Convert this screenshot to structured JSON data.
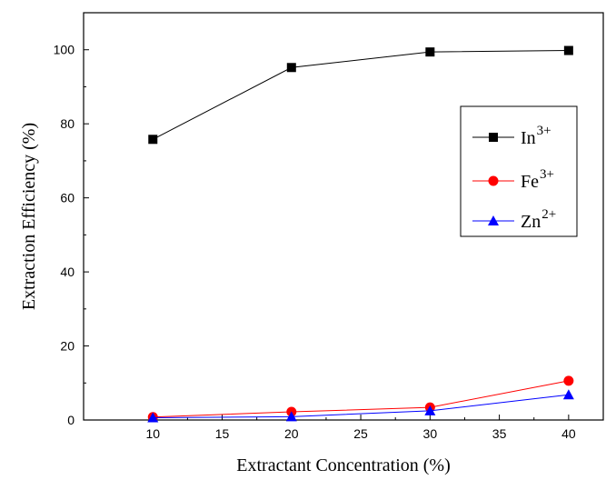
{
  "chart_data": {
    "type": "line",
    "xlabel": "Extractant Concentration  (%)",
    "ylabel": "Extraction Efficiency (%)",
    "xlim": [
      5,
      42.5
    ],
    "ylim": [
      0,
      110
    ],
    "xticks": [
      10,
      15,
      20,
      25,
      30,
      35,
      40
    ],
    "yticks": [
      0,
      20,
      40,
      60,
      80,
      100
    ],
    "grid": false,
    "legend_position": "center-right",
    "x": [
      10,
      20,
      30,
      40
    ],
    "series": [
      {
        "name": "In",
        "charge": "3+",
        "marker": "square",
        "color": "#000000",
        "values": [
          75.8,
          95.2,
          99.4,
          99.8
        ]
      },
      {
        "name": "Fe",
        "charge": "3+",
        "marker": "circle",
        "color": "#ff0000",
        "values": [
          0.8,
          2.2,
          3.4,
          10.6
        ]
      },
      {
        "name": "Zn",
        "charge": "2+",
        "marker": "triangle",
        "color": "#0000ff",
        "values": [
          0.6,
          0.9,
          2.5,
          6.8
        ]
      }
    ]
  }
}
